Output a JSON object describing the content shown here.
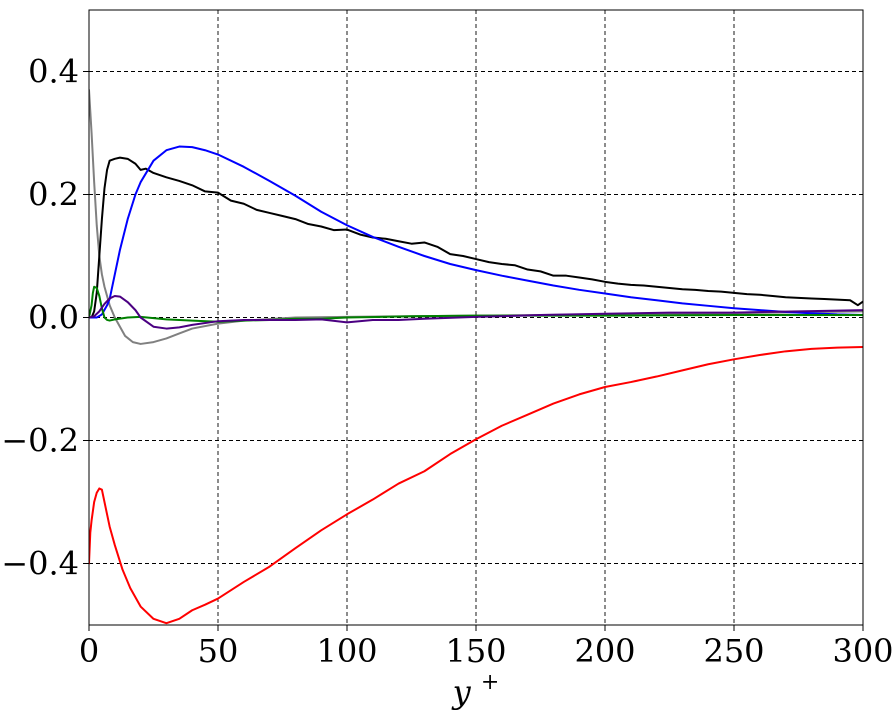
{
  "chart_data": {
    "type": "line",
    "title": "",
    "xlabel": "y",
    "xlabel_superscript": "+",
    "ylabel": "",
    "xlim": [
      0,
      300
    ],
    "ylim": [
      -0.5,
      0.5
    ],
    "grid": true,
    "grid_style": "dashed",
    "xticks": [
      0,
      50,
      100,
      150,
      200,
      250,
      300
    ],
    "yticks": [
      -0.4,
      -0.2,
      0.0,
      0.2,
      0.4
    ],
    "xtick_labels": [
      "0",
      "50",
      "100",
      "150",
      "200",
      "250",
      "300"
    ],
    "ytick_labels": [
      "−0.4",
      "−0.2",
      "0.0",
      "0.2",
      "0.4"
    ],
    "series": [
      {
        "color": "#808080",
        "x": [
          0,
          1,
          2,
          3,
          4,
          5,
          6,
          8,
          10,
          12,
          14,
          17,
          20,
          25,
          30,
          35,
          40,
          50,
          60,
          80,
          100,
          125,
          150,
          175,
          200,
          250,
          300
        ],
        "y": [
          0.37,
          0.3,
          0.22,
          0.15,
          0.1,
          0.07,
          0.05,
          0.02,
          0.0,
          -0.015,
          -0.03,
          -0.04,
          -0.043,
          -0.04,
          -0.034,
          -0.026,
          -0.018,
          -0.01,
          -0.005,
          0.0,
          0.001,
          0.002,
          0.003,
          0.004,
          0.005,
          0.007,
          0.01
        ]
      },
      {
        "color": "#000000",
        "x": [
          0,
          1,
          2,
          3,
          4,
          5,
          6,
          7,
          8,
          10,
          12,
          15,
          18,
          20,
          22,
          25,
          30,
          35,
          40,
          45,
          50,
          55,
          60,
          65,
          70,
          75,
          80,
          85,
          90,
          95,
          100,
          105,
          110,
          115,
          120,
          125,
          130,
          135,
          140,
          145,
          150,
          155,
          160,
          165,
          170,
          175,
          180,
          185,
          190,
          195,
          200,
          205,
          210,
          215,
          220,
          225,
          230,
          235,
          240,
          245,
          250,
          255,
          260,
          265,
          270,
          275,
          280,
          285,
          290,
          295,
          298,
          300
        ],
        "y": [
          0.0,
          0.0,
          0.01,
          0.04,
          0.1,
          0.16,
          0.21,
          0.24,
          0.255,
          0.258,
          0.26,
          0.258,
          0.25,
          0.24,
          0.242,
          0.235,
          0.228,
          0.222,
          0.215,
          0.205,
          0.203,
          0.19,
          0.185,
          0.175,
          0.17,
          0.165,
          0.16,
          0.152,
          0.148,
          0.142,
          0.143,
          0.135,
          0.13,
          0.128,
          0.124,
          0.12,
          0.122,
          0.115,
          0.103,
          0.1,
          0.095,
          0.09,
          0.087,
          0.085,
          0.078,
          0.075,
          0.068,
          0.068,
          0.065,
          0.062,
          0.058,
          0.055,
          0.053,
          0.052,
          0.05,
          0.048,
          0.046,
          0.045,
          0.043,
          0.042,
          0.04,
          0.038,
          0.037,
          0.035,
          0.033,
          0.032,
          0.031,
          0.03,
          0.029,
          0.028,
          0.02,
          0.026
        ]
      },
      {
        "color": "#0000ff",
        "x": [
          0,
          3,
          5,
          7,
          8,
          10,
          12,
          15,
          18,
          20,
          25,
          30,
          35,
          40,
          45,
          50,
          60,
          70,
          80,
          90,
          100,
          110,
          120,
          130,
          140,
          150,
          160,
          170,
          180,
          190,
          200,
          210,
          220,
          230,
          240,
          250,
          260,
          270,
          280,
          290,
          300
        ],
        "y": [
          0.0,
          0.0,
          0.005,
          0.02,
          0.03,
          0.07,
          0.11,
          0.16,
          0.2,
          0.22,
          0.255,
          0.272,
          0.278,
          0.277,
          0.272,
          0.265,
          0.245,
          0.222,
          0.198,
          0.172,
          0.15,
          0.131,
          0.115,
          0.1,
          0.087,
          0.077,
          0.068,
          0.06,
          0.052,
          0.045,
          0.039,
          0.033,
          0.028,
          0.023,
          0.019,
          0.015,
          0.012,
          0.009,
          0.007,
          0.005,
          0.004
        ]
      },
      {
        "color": "#ff0000",
        "x": [
          0,
          0.5,
          1,
          2,
          3,
          4,
          5,
          6,
          7,
          8,
          10,
          13,
          16,
          20,
          25,
          30,
          35,
          40,
          45,
          50,
          60,
          70,
          80,
          90,
          100,
          110,
          120,
          130,
          140,
          150,
          160,
          170,
          180,
          190,
          200,
          210,
          220,
          230,
          240,
          250,
          260,
          270,
          280,
          290,
          300
        ],
        "y": [
          -0.4,
          -0.35,
          -0.33,
          -0.3,
          -0.285,
          -0.278,
          -0.28,
          -0.3,
          -0.32,
          -0.34,
          -0.37,
          -0.41,
          -0.44,
          -0.47,
          -0.49,
          -0.497,
          -0.49,
          -0.476,
          -0.467,
          -0.457,
          -0.43,
          -0.405,
          -0.375,
          -0.346,
          -0.32,
          -0.296,
          -0.27,
          -0.25,
          -0.222,
          -0.198,
          -0.176,
          -0.158,
          -0.14,
          -0.125,
          -0.113,
          -0.105,
          -0.096,
          -0.086,
          -0.076,
          -0.068,
          -0.061,
          -0.055,
          -0.051,
          -0.049,
          -0.048
        ]
      },
      {
        "color": "#008000",
        "x": [
          0,
          1,
          1.5,
          2,
          3,
          4,
          5,
          6,
          7,
          8,
          10,
          15,
          20,
          30,
          40,
          50,
          60,
          70,
          80,
          90,
          100,
          125,
          150,
          175,
          200,
          250,
          300
        ],
        "y": [
          0.0,
          0.02,
          0.04,
          0.05,
          0.048,
          0.035,
          0.015,
          0.0,
          -0.004,
          -0.005,
          -0.003,
          0.0,
          0.001,
          -0.003,
          -0.005,
          -0.007,
          -0.005,
          -0.004,
          -0.002,
          -0.002,
          0.0,
          0.002,
          0.003,
          0.003,
          0.003,
          0.004,
          0.004
        ]
      },
      {
        "color": "#4b0082",
        "x": [
          0,
          2,
          4,
          6,
          8,
          10,
          12,
          15,
          18,
          20,
          25,
          30,
          35,
          40,
          50,
          60,
          70,
          80,
          90,
          100,
          110,
          120,
          130,
          150,
          175,
          200,
          225,
          250,
          275,
          300
        ],
        "y": [
          0.0,
          0.002,
          0.01,
          0.022,
          0.031,
          0.035,
          0.034,
          0.025,
          0.012,
          0.0,
          -0.015,
          -0.018,
          -0.016,
          -0.012,
          -0.006,
          -0.004,
          -0.004,
          -0.004,
          -0.003,
          -0.008,
          -0.004,
          -0.004,
          -0.002,
          0.001,
          0.004,
          0.006,
          0.008,
          0.008,
          0.01,
          0.012
        ]
      }
    ]
  }
}
